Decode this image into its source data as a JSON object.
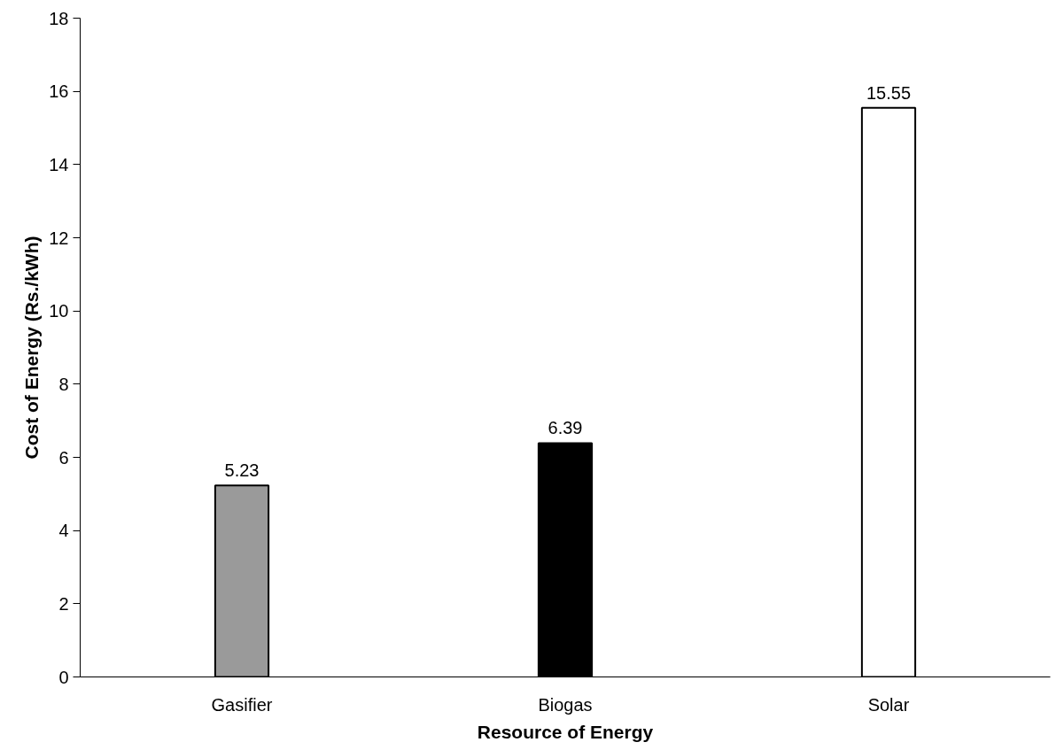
{
  "chart_data": {
    "type": "bar",
    "xlabel": "Resource of Energy",
    "ylabel": "Cost of Energy (Rs./kWh)",
    "categories": [
      "Gasifier",
      "Biogas",
      "Solar"
    ],
    "values": [
      5.23,
      6.39,
      15.55
    ],
    "colors": [
      "#9a9a9a",
      "#000000",
      "#ffffff"
    ],
    "ylim": [
      0,
      18
    ],
    "yticks": [
      0,
      2,
      4,
      6,
      8,
      10,
      12,
      14,
      16,
      18
    ],
    "data_labels": true
  }
}
